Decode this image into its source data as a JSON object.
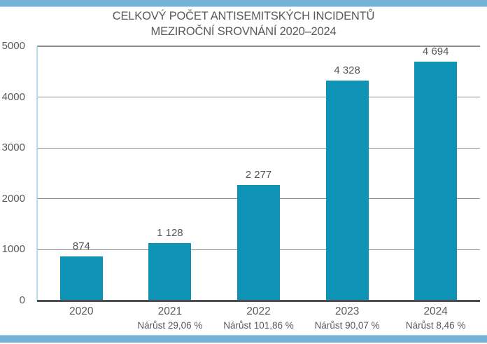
{
  "page": {
    "background_color": "#ffffff",
    "top_strip_color": "#74b3d5",
    "bottom_strip_color": "#74b3d5"
  },
  "chart_data": {
    "type": "bar",
    "title_line1": "CELKOVÝ POČET ANTISEMITSKÝCH INCIDENTŮ",
    "title_line2": "MEZIROČNÍ SROVNÁNÍ 2020–2024",
    "categories": [
      "2020",
      "2021",
      "2022",
      "2023",
      "2024"
    ],
    "values": [
      874,
      1128,
      2277,
      4328,
      4694
    ],
    "value_labels": [
      "874",
      "1 128",
      "2 277",
      "4 328",
      "4 694"
    ],
    "growth_labels": [
      "",
      "Nárůst 29,06 %",
      "Nárůst 101,86 %",
      "Nárůst 90,07 %",
      "Nárůst 8,46 %"
    ],
    "yticks": [
      0,
      1000,
      2000,
      3000,
      4000,
      5000
    ],
    "ylim": [
      0,
      5000
    ],
    "xlabel": "",
    "ylabel": "",
    "grid": true,
    "legend": false,
    "bar_color": "#0e92b6",
    "axis_line_color": "#b9def0",
    "gridline_color": "#8a8c8f",
    "baseline_color": "#4c4d4f",
    "title_color": "#58595b",
    "tick_text_color": "#58595b",
    "value_text_color": "#545558",
    "growth_text_color": "#58595b"
  }
}
